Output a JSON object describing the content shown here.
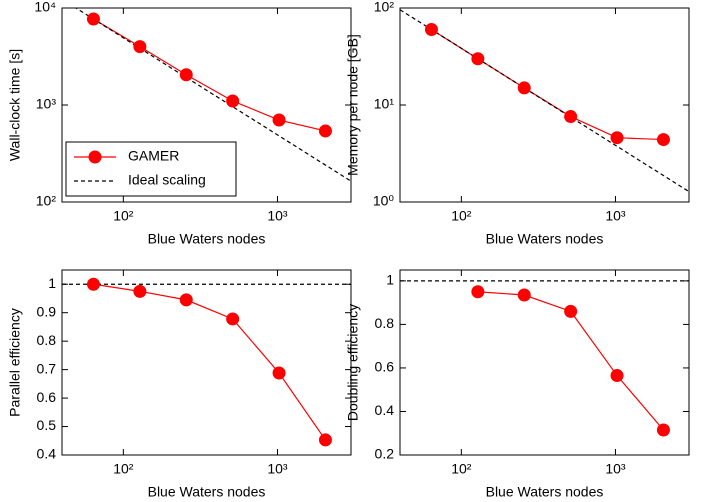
{
  "chart_data": [
    {
      "type": "line",
      "xlabel": "Blue Waters nodes",
      "ylabel": "Wall-clock time [s]",
      "xscale": "log",
      "yscale": "log",
      "xlim": [
        40,
        3000
      ],
      "xticks": [
        {
          "value": 100,
          "label": "10²"
        },
        {
          "value": 1000,
          "label": "10³"
        }
      ],
      "ylim": [
        100,
        10000
      ],
      "yticks": [
        {
          "value": 100,
          "label": "10²"
        },
        {
          "value": 1000,
          "label": "10³"
        },
        {
          "value": 10000,
          "label": "10⁴"
        }
      ],
      "legend": "lower left",
      "series": [
        {
          "name": "GAMER",
          "color": "#ff0000",
          "marker": "circle",
          "linestyle": "solid",
          "x": [
            64,
            128,
            256,
            512,
            1024,
            2048
          ],
          "values": [
            7700,
            4000,
            2050,
            1100,
            700,
            540
          ]
        },
        {
          "name": "Ideal scaling",
          "color": "#000000",
          "linestyle": "dashed",
          "x": [
            40,
            3000
          ],
          "values": [
            12320,
            164
          ]
        }
      ]
    },
    {
      "type": "line",
      "xlabel": "Blue Waters nodes",
      "ylabel": "Memory per node [GB]",
      "xscale": "log",
      "yscale": "log",
      "xlim": [
        40,
        3000
      ],
      "xticks": [
        {
          "value": 100,
          "label": "10²"
        },
        {
          "value": 1000,
          "label": "10³"
        }
      ],
      "ylim": [
        1,
        100
      ],
      "yticks": [
        {
          "value": 1,
          "label": "10⁰"
        },
        {
          "value": 10,
          "label": "10¹"
        },
        {
          "value": 100,
          "label": "10²"
        }
      ],
      "series": [
        {
          "color": "#ff0000",
          "marker": "circle",
          "linestyle": "solid",
          "x": [
            64,
            128,
            256,
            512,
            1024,
            2048
          ],
          "values": [
            60,
            30,
            15,
            7.6,
            4.6,
            4.4
          ]
        },
        {
          "color": "#000000",
          "linestyle": "dashed",
          "x": [
            40,
            3000
          ],
          "values": [
            96,
            1.28
          ]
        }
      ]
    },
    {
      "type": "line",
      "xlabel": "Blue Waters nodes",
      "ylabel": "Parallel efficiency",
      "xscale": "log",
      "xlim": [
        40,
        3000
      ],
      "xticks": [
        {
          "value": 100,
          "label": "10²"
        },
        {
          "value": 1000,
          "label": "10³"
        }
      ],
      "ylim": [
        0.4,
        1.05
      ],
      "yticks": [
        0.4,
        0.5,
        0.6,
        0.7,
        0.8,
        0.9,
        1
      ],
      "series": [
        {
          "color": "#ff0000",
          "marker": "circle",
          "linestyle": "solid",
          "x": [
            64,
            128,
            256,
            512,
            1024,
            2048
          ],
          "values": [
            1,
            0.975,
            0.945,
            0.878,
            0.688,
            0.453
          ]
        },
        {
          "color": "#000000",
          "linestyle": "dashed",
          "x": [
            40,
            3000
          ],
          "values": [
            1,
            1
          ]
        }
      ]
    },
    {
      "type": "line",
      "xlabel": "Blue Waters nodes",
      "ylabel": "Doubling efficiency",
      "xscale": "log",
      "xlim": [
        40,
        3000
      ],
      "xticks": [
        {
          "value": 100,
          "label": "10²"
        },
        {
          "value": 1000,
          "label": "10³"
        }
      ],
      "ylim": [
        0.2,
        1.05
      ],
      "yticks": [
        0.2,
        0.4,
        0.6,
        0.8,
        1
      ],
      "series": [
        {
          "color": "#ff0000",
          "marker": "circle",
          "linestyle": "solid",
          "x": [
            128,
            256,
            512,
            1024,
            2048
          ],
          "values": [
            0.95,
            0.935,
            0.86,
            0.565,
            0.315
          ]
        },
        {
          "color": "#000000",
          "linestyle": "dashed",
          "x": [
            40,
            3000
          ],
          "values": [
            1,
            1
          ]
        }
      ]
    }
  ]
}
